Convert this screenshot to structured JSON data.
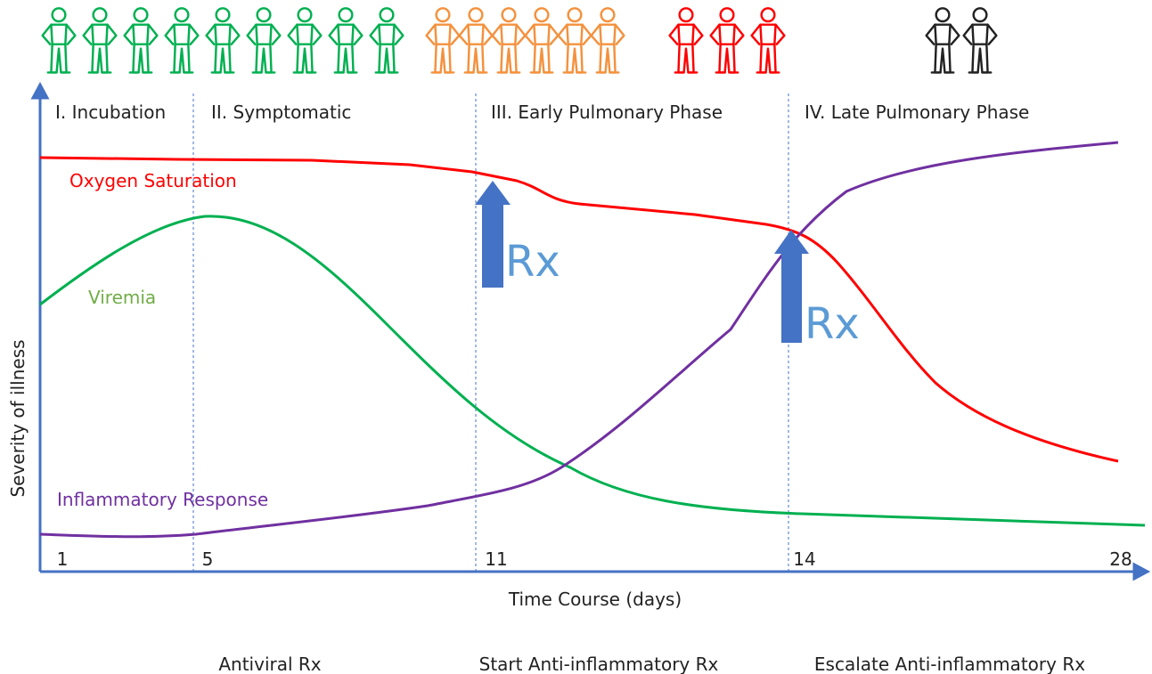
{
  "phases": [
    "I. Incubation",
    "II. Symptomatic",
    "III. Early Pulmonary Phase",
    "IV. Late Pulmonary Phase"
  ],
  "curves": [
    "Oxygen Saturation",
    "Viremia",
    "Inflammatory Response"
  ],
  "markers": [
    "Rx",
    "Rx"
  ],
  "axis": {
    "y_label": "Severity of illness",
    "x_label": "Time Course (days)",
    "ticks": [
      "1",
      "5",
      "11",
      "14",
      "28"
    ]
  },
  "treatments": [
    "Antiviral Rx",
    "Start Anti-inflammatory Rx",
    "Escalate Anti-inflammatory Rx"
  ]
}
